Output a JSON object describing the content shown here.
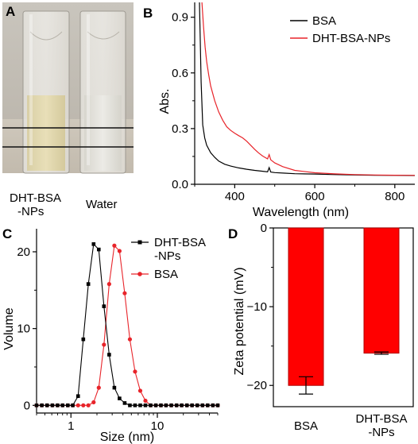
{
  "panels": {
    "A": {
      "letter": "A",
      "label_left_line1": "DHT-BSA",
      "label_left_line2": "-NPs",
      "label_right": "Water"
    },
    "B": {
      "letter": "B"
    },
    "C": {
      "letter": "C"
    },
    "D": {
      "letter": "D"
    }
  },
  "chart_data": [
    {
      "panel": "B",
      "type": "line",
      "xlabel": "Wavelength (nm)",
      "ylabel": "Abs.",
      "xlim": [
        300,
        850
      ],
      "ylim": [
        0,
        0.98
      ],
      "xticks": [
        400,
        600,
        800
      ],
      "yticks": [
        0.0,
        0.3,
        0.6,
        0.9
      ],
      "ytick_labels": [
        "0.0",
        "0.3",
        "0.6",
        "0.9"
      ],
      "legend_position": "top-right",
      "series": [
        {
          "name": "BSA",
          "color": "#000000",
          "x": [
            312,
            316,
            320,
            325,
            330,
            340,
            350,
            360,
            375,
            390,
            410,
            430,
            450,
            470,
            482,
            486,
            490,
            500,
            525,
            550,
            600,
            650,
            700,
            750,
            800,
            850
          ],
          "y": [
            0.98,
            0.55,
            0.32,
            0.25,
            0.21,
            0.17,
            0.145,
            0.125,
            0.108,
            0.098,
            0.088,
            0.081,
            0.075,
            0.07,
            0.067,
            0.09,
            0.066,
            0.063,
            0.06,
            0.057,
            0.055,
            0.052,
            0.05,
            0.049,
            0.048,
            0.047
          ]
        },
        {
          "name": "DHT-BSA-NPs",
          "color": "#e8242a",
          "x": [
            318,
            322,
            326,
            330,
            335,
            340,
            350,
            360,
            370,
            380,
            390,
            400,
            410,
            420,
            430,
            440,
            450,
            460,
            470,
            482,
            486,
            490,
            500,
            520,
            550,
            600,
            650,
            700,
            750,
            800,
            850
          ],
          "y": [
            0.98,
            0.85,
            0.74,
            0.66,
            0.59,
            0.53,
            0.45,
            0.39,
            0.345,
            0.31,
            0.29,
            0.275,
            0.262,
            0.25,
            0.232,
            0.21,
            0.188,
            0.168,
            0.152,
            0.137,
            0.16,
            0.132,
            0.115,
            0.095,
            0.075,
            0.062,
            0.056,
            0.052,
            0.05,
            0.049,
            0.048
          ]
        }
      ]
    },
    {
      "panel": "C",
      "type": "line",
      "xlabel": "Size (nm)",
      "ylabel": "Volume",
      "xscale": "log",
      "xlim": [
        0.4,
        50
      ],
      "ylim": [
        -1,
        23
      ],
      "xticks": [
        1,
        10
      ],
      "yticks": [
        0,
        10,
        20
      ],
      "legend_position": "top-right",
      "series": [
        {
          "name": "DHT-BSA\n-NPs",
          "color": "#000000",
          "marker": "square",
          "x": [
            0.4,
            0.46,
            0.53,
            0.61,
            0.7,
            0.8,
            0.92,
            1.05,
            1.21,
            1.39,
            1.59,
            1.83,
            2.1,
            2.41,
            2.77,
            3.18,
            3.65,
            4.19,
            4.81,
            5.52,
            6.34,
            7.28,
            8.36,
            9.6,
            11.0,
            12.6,
            14.5,
            16.7,
            19.1,
            22.0,
            25.2,
            29.0,
            33.3,
            38.2,
            43.9,
            50.0
          ],
          "y": [
            0,
            0,
            0,
            0,
            0,
            0,
            0,
            0,
            1.2,
            8.6,
            15.8,
            21.0,
            20.3,
            12.9,
            6.6,
            2.3,
            0.9,
            0.3,
            0,
            0,
            0,
            0,
            0,
            0,
            0,
            0,
            0,
            0,
            0,
            0,
            0,
            0,
            0,
            0,
            0,
            0
          ]
        },
        {
          "name": "BSA",
          "color": "#e8242a",
          "marker": "circle",
          "x": [
            0.4,
            0.46,
            0.53,
            0.61,
            0.7,
            0.8,
            0.92,
            1.05,
            1.21,
            1.39,
            1.59,
            1.83,
            2.1,
            2.41,
            2.77,
            3.18,
            3.65,
            4.19,
            4.81,
            5.52,
            6.34,
            7.28,
            8.36,
            9.6,
            11.0,
            12.6,
            14.5,
            16.7,
            19.1,
            22.0,
            25.2,
            29.0,
            33.3,
            38.2,
            43.9,
            50.0
          ],
          "y": [
            0,
            0,
            0,
            0,
            0,
            0,
            0,
            0,
            0,
            0,
            0,
            0.4,
            2.3,
            7.9,
            15.8,
            20.8,
            20.1,
            14.6,
            8.6,
            4.4,
            1.9,
            0.6,
            0,
            0,
            0,
            0,
            0,
            0,
            0,
            0,
            0,
            0,
            0,
            0,
            0,
            0
          ]
        }
      ]
    },
    {
      "panel": "D",
      "type": "bar",
      "xlabel": "",
      "ylabel": "Zeta potential (mV)",
      "ylim": [
        -22.7,
        0
      ],
      "yticks": [
        0,
        -10,
        -20
      ],
      "categories": [
        "BSA",
        "DHT-BSA\n-NPs"
      ],
      "values": [
        -20.0,
        -15.9
      ],
      "errors": [
        1.1,
        0.15
      ],
      "bar_color": "#ff0000",
      "edge_color": "#b00000"
    }
  ]
}
